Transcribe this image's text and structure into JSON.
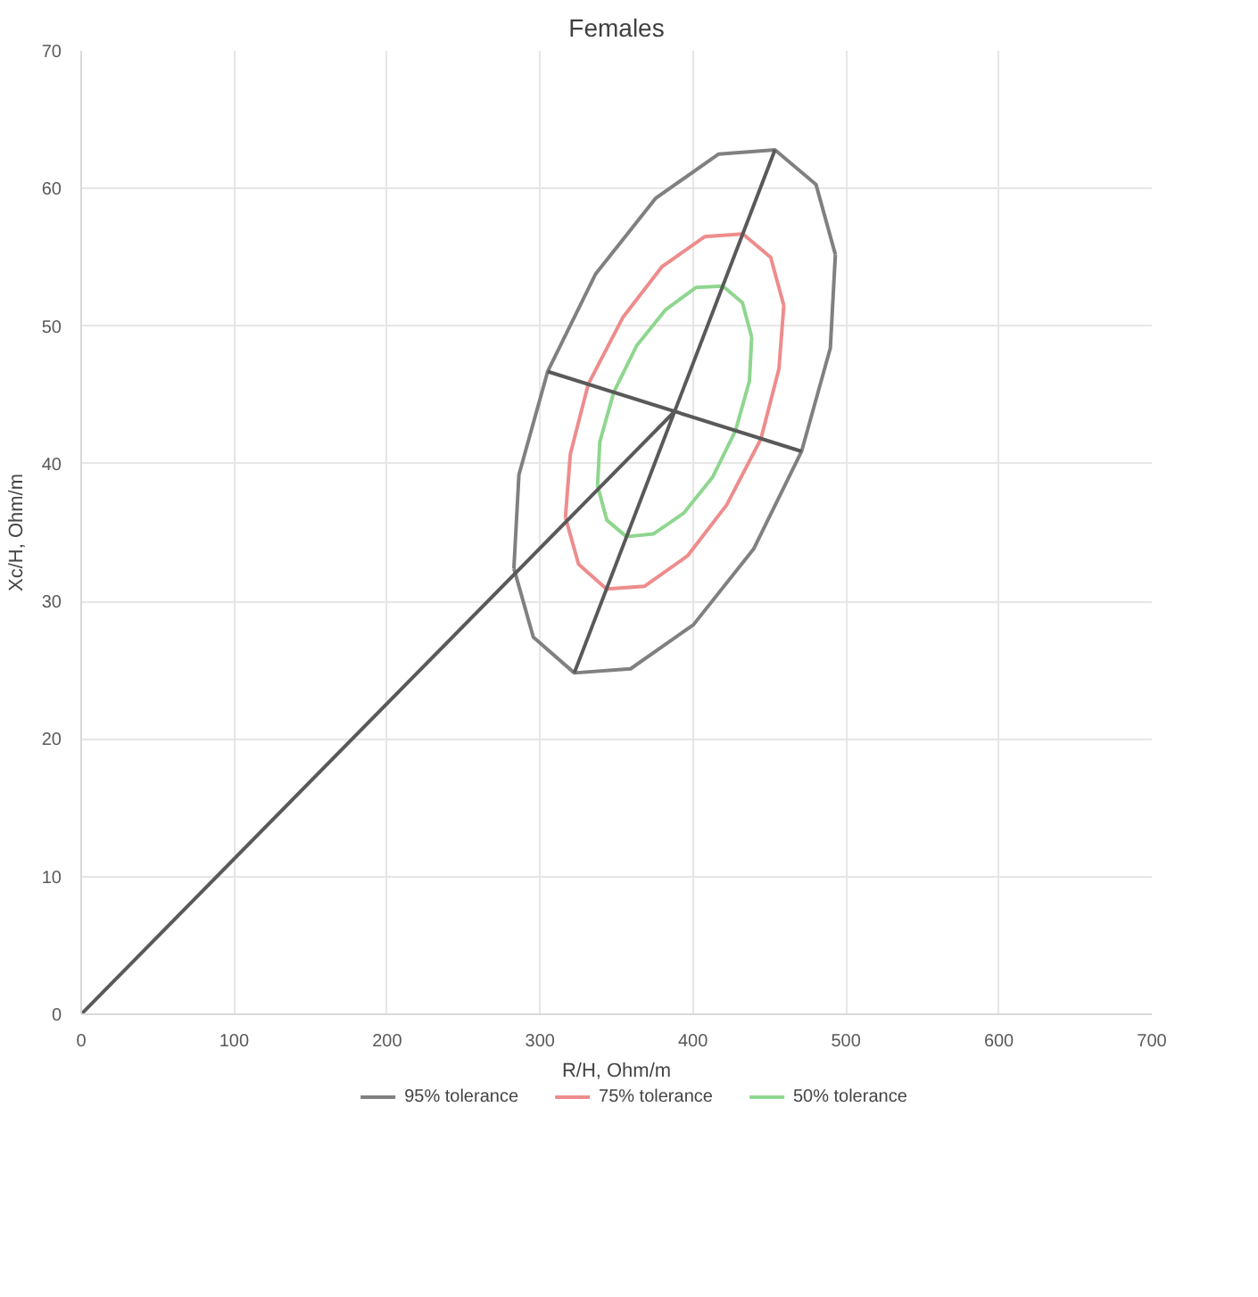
{
  "chart_data": {
    "type": "line",
    "title": "Females",
    "xlabel": "R/H, Ohm/m",
    "ylabel": "Xc/H, Ohm/m",
    "xlim": [
      0,
      700
    ],
    "ylim": [
      0,
      70
    ],
    "xticks": [
      0,
      100,
      200,
      300,
      400,
      500,
      600,
      700
    ],
    "yticks": [
      0,
      10,
      20,
      30,
      40,
      50,
      60,
      70
    ],
    "grid": true,
    "legend": "bottom",
    "marker": "none",
    "line_style": "solid",
    "series": [
      {
        "name": "95% tolerance",
        "color": "#808080",
        "x": [
          282.9,
          286.2,
          305,
          336.4,
          375.7,
          416.8,
          453.6,
          480.4,
          493.1,
          null,
          282.9,
          295.6,
          322.4,
          359.2,
          400.3,
          439.6,
          471,
          489.8,
          493.1
        ],
        "values": [
          32.4,
          39.2,
          46.7,
          53.8,
          59.3,
          62.5,
          62.8,
          60.3,
          55.2,
          null,
          32.4,
          27.4,
          24.8,
          25.1,
          28.3,
          33.8,
          40.9,
          48.4,
          55.2
        ]
      },
      {
        "name": "75% tolerance",
        "color": "#ee8c8c",
        "x": [
          316.6,
          319.8,
          331.6,
          354,
          379.6,
          407.6,
          432.6,
          450.8,
          459.4,
          null,
          316.6,
          325.2,
          343.4,
          368.4,
          396.4,
          422,
          444.4,
          456.2,
          459.4
        ],
        "values": [
          36.1,
          40.7,
          45.8,
          50.6,
          54.3,
          56.5,
          56.7,
          55.0,
          51.5,
          null,
          36.1,
          32.7,
          30.9,
          31.1,
          33.3,
          37.0,
          41.8,
          46.9,
          51.5
        ]
      },
      {
        "name": "50% tolerance",
        "color": "#8fd68f",
        "x": [
          337.6,
          339.1,
          348.2,
          363.3,
          382.2,
          401.9,
          419.5,
          432.3,
          438.4,
          null,
          337.6,
          343.7,
          356.5,
          374.1,
          393.8,
          412.7,
          427.8,
          436.9,
          438.4
        ],
        "values": [
          38.4,
          41.6,
          45.2,
          48.6,
          51.2,
          52.8,
          52.9,
          51.7,
          49.2,
          null,
          38.4,
          35.9,
          34.7,
          34.9,
          36.4,
          39.0,
          42.4,
          46.0,
          49.2
        ]
      },
      {
        "color": "#595959",
        "x": [
          322.4,
          453.6
        ],
        "values": [
          24.8,
          62.8
        ]
      },
      {
        "color": "#595959",
        "x": [
          305,
          471
        ],
        "values": [
          46.7,
          40.9
        ]
      },
      {
        "color": "#595959",
        "x": [
          0,
          388
        ],
        "values": [
          0,
          43.8
        ]
      }
    ]
  }
}
